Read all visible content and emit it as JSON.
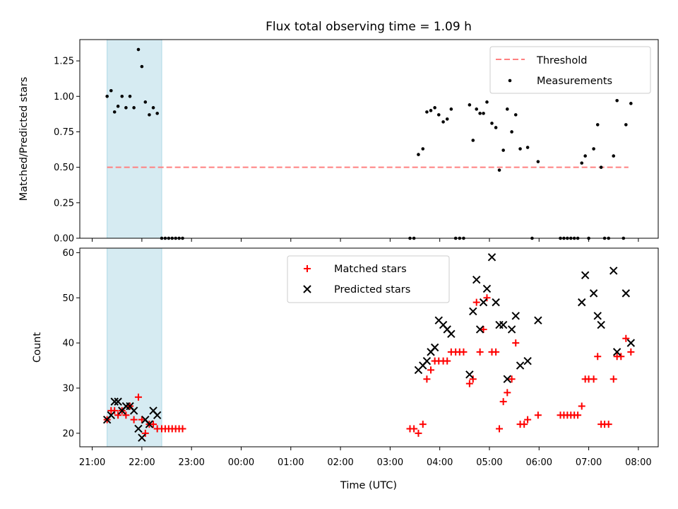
{
  "figure": {
    "title": "Flux total observing time = 1.09 h"
  },
  "colors": {
    "threshold": "#ff8080",
    "measurements": "#000000",
    "matched": "#ff0000",
    "predicted": "#000000",
    "highlight_span": "#add8e6"
  },
  "chart_data": [
    {
      "type": "scatter",
      "ylabel": "Matched/Predicted stars",
      "ylim": [
        0,
        1.4
      ],
      "yticks": [
        0.0,
        0.25,
        0.5,
        0.75,
        1.0,
        1.25
      ],
      "ytick_labels": [
        "0.00",
        "0.25",
        "0.50",
        "0.75",
        "1.00",
        "1.25"
      ],
      "x_units": "hours since 21:00 UTC",
      "xlim": [
        -0.25,
        11.4
      ],
      "highlight_span": [
        0.3,
        1.4
      ],
      "legend_position": "upper-right",
      "threshold": {
        "name": "Threshold",
        "y": 0.5,
        "x_range": [
          0.3,
          10.8
        ]
      },
      "series": [
        {
          "name": "Measurements",
          "marker": "dot",
          "points": [
            [
              0.3,
              1.0
            ],
            [
              0.38,
              1.04
            ],
            [
              0.45,
              0.89
            ],
            [
              0.52,
              0.93
            ],
            [
              0.6,
              1.0
            ],
            [
              0.68,
              0.92
            ],
            [
              0.76,
              1.0
            ],
            [
              0.84,
              0.92
            ],
            [
              0.93,
              1.33
            ],
            [
              1.0,
              1.21
            ],
            [
              1.07,
              0.96
            ],
            [
              1.15,
              0.87
            ],
            [
              1.23,
              0.92
            ],
            [
              1.31,
              0.88
            ],
            [
              1.4,
              0.0
            ],
            [
              1.47,
              0.0
            ],
            [
              1.54,
              0.0
            ],
            [
              1.61,
              0.0
            ],
            [
              1.68,
              0.0
            ],
            [
              1.75,
              0.0
            ],
            [
              1.82,
              0.0
            ],
            [
              6.4,
              0.0
            ],
            [
              6.48,
              0.0
            ],
            [
              6.57,
              0.59
            ],
            [
              6.66,
              0.63
            ],
            [
              6.74,
              0.89
            ],
            [
              6.82,
              0.9
            ],
            [
              6.9,
              0.92
            ],
            [
              6.98,
              0.87
            ],
            [
              7.07,
              0.82
            ],
            [
              7.15,
              0.84
            ],
            [
              7.23,
              0.91
            ],
            [
              7.32,
              0.0
            ],
            [
              7.4,
              0.0
            ],
            [
              7.48,
              0.0
            ],
            [
              7.6,
              0.94
            ],
            [
              7.67,
              0.69
            ],
            [
              7.74,
              0.91
            ],
            [
              7.81,
              0.88
            ],
            [
              7.88,
              0.88
            ],
            [
              7.95,
              0.96
            ],
            [
              8.05,
              0.81
            ],
            [
              8.13,
              0.78
            ],
            [
              8.2,
              0.48
            ],
            [
              8.28,
              0.62
            ],
            [
              8.36,
              0.91
            ],
            [
              8.45,
              0.75
            ],
            [
              8.53,
              0.87
            ],
            [
              8.62,
              0.63
            ],
            [
              8.77,
              0.64
            ],
            [
              8.86,
              0.0
            ],
            [
              8.98,
              0.54
            ],
            [
              9.43,
              0.0
            ],
            [
              9.5,
              0.0
            ],
            [
              9.57,
              0.0
            ],
            [
              9.64,
              0.0
            ],
            [
              9.71,
              0.0
            ],
            [
              9.78,
              0.0
            ],
            [
              9.86,
              0.53
            ],
            [
              9.93,
              0.58
            ],
            [
              10.0,
              0.0
            ],
            [
              10.1,
              0.63
            ],
            [
              10.18,
              0.8
            ],
            [
              10.25,
              0.5
            ],
            [
              10.32,
              0.0
            ],
            [
              10.4,
              0.0
            ],
            [
              10.5,
              0.58
            ],
            [
              10.57,
              0.97
            ],
            [
              10.7,
              0.0
            ],
            [
              10.75,
              0.8
            ],
            [
              10.85,
              0.95
            ]
          ]
        }
      ]
    },
    {
      "type": "scatter",
      "ylabel": "Count",
      "xlabel": "Time (UTC)",
      "ylim": [
        17,
        61
      ],
      "yticks": [
        20,
        30,
        40,
        50,
        60
      ],
      "ytick_labels": [
        "20",
        "30",
        "40",
        "50",
        "60"
      ],
      "x_units": "hours since 21:00 UTC",
      "xlim": [
        -0.25,
        11.4
      ],
      "xticks": [
        0,
        1,
        2,
        3,
        4,
        5,
        6,
        7,
        8,
        9,
        10,
        11
      ],
      "xtick_labels": [
        "21:00",
        "22:00",
        "23:00",
        "00:00",
        "01:00",
        "02:00",
        "03:00",
        "04:00",
        "05:00",
        "06:00",
        "07:00",
        "08:00"
      ],
      "highlight_span": [
        0.3,
        1.4
      ],
      "legend_position": "upper-center",
      "series": [
        {
          "name": "Matched stars",
          "marker": "plus",
          "points": [
            [
              0.3,
              23
            ],
            [
              0.38,
              25
            ],
            [
              0.45,
              25
            ],
            [
              0.52,
              24
            ],
            [
              0.6,
              25
            ],
            [
              0.68,
              24
            ],
            [
              0.76,
              26
            ],
            [
              0.84,
              23
            ],
            [
              0.93,
              28
            ],
            [
              1.0,
              23
            ],
            [
              1.07,
              20
            ],
            [
              1.15,
              22
            ],
            [
              1.23,
              22
            ],
            [
              1.31,
              21
            ],
            [
              1.4,
              21
            ],
            [
              1.47,
              21
            ],
            [
              1.54,
              21
            ],
            [
              1.61,
              21
            ],
            [
              1.68,
              21
            ],
            [
              1.75,
              21
            ],
            [
              1.82,
              21
            ],
            [
              6.4,
              21
            ],
            [
              6.48,
              21
            ],
            [
              6.57,
              20
            ],
            [
              6.66,
              22
            ],
            [
              6.74,
              32
            ],
            [
              6.82,
              34
            ],
            [
              6.9,
              36
            ],
            [
              6.98,
              36
            ],
            [
              7.07,
              36
            ],
            [
              7.15,
              36
            ],
            [
              7.23,
              38
            ],
            [
              7.32,
              38
            ],
            [
              7.4,
              38
            ],
            [
              7.48,
              38
            ],
            [
              7.6,
              31
            ],
            [
              7.67,
              32
            ],
            [
              7.74,
              49
            ],
            [
              7.81,
              38
            ],
            [
              7.88,
              43
            ],
            [
              7.95,
              50
            ],
            [
              8.05,
              38
            ],
            [
              8.13,
              38
            ],
            [
              8.2,
              21
            ],
            [
              8.28,
              27
            ],
            [
              8.36,
              29
            ],
            [
              8.45,
              32
            ],
            [
              8.53,
              40
            ],
            [
              8.62,
              22
            ],
            [
              8.7,
              22
            ],
            [
              8.77,
              23
            ],
            [
              8.98,
              24
            ],
            [
              9.43,
              24
            ],
            [
              9.5,
              24
            ],
            [
              9.57,
              24
            ],
            [
              9.64,
              24
            ],
            [
              9.71,
              24
            ],
            [
              9.78,
              24
            ],
            [
              9.86,
              26
            ],
            [
              9.93,
              32
            ],
            [
              10.0,
              32
            ],
            [
              10.1,
              32
            ],
            [
              10.18,
              37
            ],
            [
              10.25,
              22
            ],
            [
              10.32,
              22
            ],
            [
              10.4,
              22
            ],
            [
              10.5,
              32
            ],
            [
              10.57,
              37
            ],
            [
              10.65,
              37
            ],
            [
              10.75,
              41
            ],
            [
              10.85,
              38
            ]
          ]
        },
        {
          "name": "Predicted stars",
          "marker": "x",
          "points": [
            [
              0.3,
              23
            ],
            [
              0.38,
              24
            ],
            [
              0.45,
              27
            ],
            [
              0.52,
              27
            ],
            [
              0.6,
              25
            ],
            [
              0.68,
              26
            ],
            [
              0.76,
              26
            ],
            [
              0.84,
              25
            ],
            [
              0.93,
              21
            ],
            [
              1.0,
              19
            ],
            [
              1.07,
              23
            ],
            [
              1.15,
              22
            ],
            [
              1.23,
              25
            ],
            [
              1.31,
              24
            ],
            [
              6.57,
              34
            ],
            [
              6.66,
              35
            ],
            [
              6.74,
              36
            ],
            [
              6.82,
              38
            ],
            [
              6.9,
              39
            ],
            [
              6.98,
              45
            ],
            [
              7.07,
              44
            ],
            [
              7.15,
              43
            ],
            [
              7.23,
              42
            ],
            [
              7.6,
              33
            ],
            [
              7.67,
              47
            ],
            [
              7.74,
              54
            ],
            [
              7.81,
              43
            ],
            [
              7.88,
              49
            ],
            [
              7.95,
              52
            ],
            [
              8.05,
              59
            ],
            [
              8.13,
              49
            ],
            [
              8.2,
              44
            ],
            [
              8.28,
              44
            ],
            [
              8.36,
              32
            ],
            [
              8.45,
              43
            ],
            [
              8.53,
              46
            ],
            [
              8.62,
              35
            ],
            [
              8.77,
              36
            ],
            [
              8.98,
              45
            ],
            [
              9.86,
              49
            ],
            [
              9.93,
              55
            ],
            [
              10.1,
              51
            ],
            [
              10.18,
              46
            ],
            [
              10.25,
              44
            ],
            [
              10.5,
              56
            ],
            [
              10.57,
              38
            ],
            [
              10.75,
              51
            ],
            [
              10.85,
              40
            ]
          ]
        }
      ]
    }
  ]
}
